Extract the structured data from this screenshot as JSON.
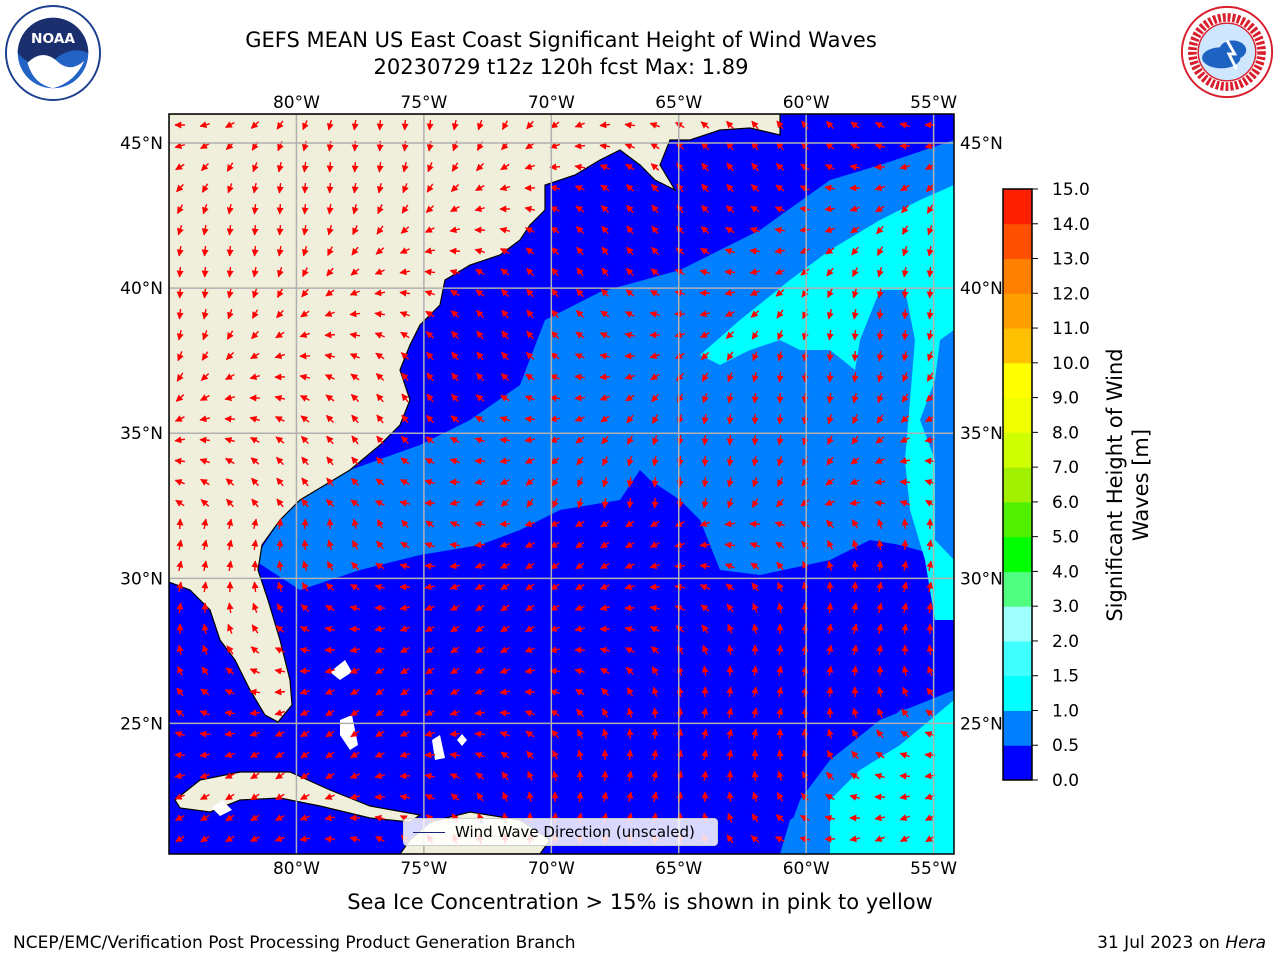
{
  "header": {
    "title_line1": "GEFS MEAN US East Coast Significant Height of Wind Waves",
    "title_line2": "20230729 t12z 120h fcst   Max: 1.89"
  },
  "logos": {
    "left": {
      "icon": "noaa-logo",
      "text": "NOAA"
    },
    "right": {
      "icon": "national-weather-service-logo"
    }
  },
  "map": {
    "projection": "lat-lon",
    "lon_range": [
      -85,
      -54.2
    ],
    "lat_range": [
      20.5,
      46
    ],
    "lon_ticks": [
      {
        "value": -80,
        "label": "80°W"
      },
      {
        "value": -75,
        "label": "75°W"
      },
      {
        "value": -70,
        "label": "70°W"
      },
      {
        "value": -65,
        "label": "65°W"
      },
      {
        "value": -60,
        "label": "60°W"
      },
      {
        "value": -55,
        "label": "55°W"
      }
    ],
    "lat_ticks": [
      {
        "value": 45,
        "label": "45°N"
      },
      {
        "value": 40,
        "label": "40°N"
      },
      {
        "value": 35,
        "label": "35°N"
      },
      {
        "value": 30,
        "label": "30°N"
      },
      {
        "value": 25,
        "label": "25°N"
      }
    ],
    "gridlines": true,
    "colors": {
      "land": "#efefdc",
      "ocean_low": "#0000ff",
      "ocean_mid": "#0080ff",
      "ocean_high": "#00ffff",
      "arrows": "#ff0000",
      "grid": "#b0b0b0"
    },
    "legend": {
      "label": "Wind Wave Direction (unscaled)",
      "placement": "lower-center"
    }
  },
  "colorbar": {
    "label": "Significant Height of Wind Waves [m]",
    "range": [
      0,
      15
    ],
    "levels": [
      {
        "value": 0.0,
        "label": "0.0",
        "color": "#0000ff"
      },
      {
        "value": 0.5,
        "label": "0.5",
        "color": "#0080ff"
      },
      {
        "value": 1.0,
        "label": "1.0",
        "color": "#00ffff"
      },
      {
        "value": 1.5,
        "label": "1.5",
        "color": "#40ffff"
      },
      {
        "value": 2.0,
        "label": "2.0",
        "color": "#a0ffff"
      },
      {
        "value": 3.0,
        "label": "3.0",
        "color": "#50ff80"
      },
      {
        "value": 4.0,
        "label": "4.0",
        "color": "#00ff00"
      },
      {
        "value": 5.0,
        "label": "5.0",
        "color": "#50f000"
      },
      {
        "value": 6.0,
        "label": "6.0",
        "color": "#a0f000"
      },
      {
        "value": 7.0,
        "label": "7.0",
        "color": "#d0ff00"
      },
      {
        "value": 8.0,
        "label": "8.0",
        "color": "#f0ff00"
      },
      {
        "value": 9.0,
        "label": "9.0",
        "color": "#ffff00"
      },
      {
        "value": 10.0,
        "label": "10.0",
        "color": "#ffc000"
      },
      {
        "value": 11.0,
        "label": "11.0",
        "color": "#ffa000"
      },
      {
        "value": 12.0,
        "label": "12.0",
        "color": "#ff8000"
      },
      {
        "value": 13.0,
        "label": "13.0",
        "color": "#ff5000"
      },
      {
        "value": 14.0,
        "label": "14.0",
        "color": "#ff2000"
      },
      {
        "value": 15.0,
        "label": "15.0",
        "color": "#ff0000"
      }
    ]
  },
  "note": "Sea Ice Concentration > 15% is shown in pink to yellow",
  "footer": {
    "left": "NCEP/EMC/Verification Post Processing Product Generation Branch",
    "right_date": "31 Jul 2023 on",
    "right_host": "Hera"
  }
}
